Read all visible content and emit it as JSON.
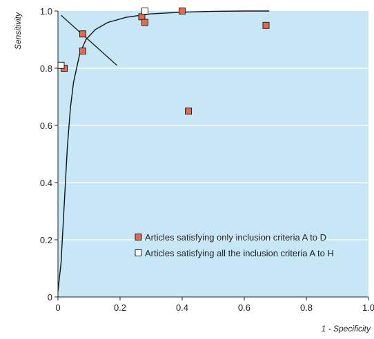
{
  "chart_data": {
    "type": "scatter",
    "title": "",
    "xlabel": "1 - Specificity",
    "ylabel": "Sensitivity",
    "xlim": [
      0,
      1
    ],
    "ylim": [
      0,
      1
    ],
    "grid": true,
    "legend_position": "bottom-right",
    "x_ticks": [
      0,
      0.2,
      0.4,
      0.6,
      0.8,
      1.0
    ],
    "y_ticks": [
      0,
      0.2,
      0.4,
      0.6,
      0.8,
      1.0
    ],
    "x_tick_labels": [
      "0",
      "0.2",
      "0.4",
      "0.6",
      "0.8",
      "1.0"
    ],
    "y_tick_labels": [
      "0",
      "0.2",
      "0.4",
      "0.6",
      "0.8",
      "1.0"
    ],
    "series": [
      {
        "name": "Articles satisfying only inclusion criteria A to D",
        "marker": "filled-square",
        "color": "#E8694A",
        "points": [
          {
            "x": 0.02,
            "y": 0.8
          },
          {
            "x": 0.08,
            "y": 0.92
          },
          {
            "x": 0.08,
            "y": 0.86
          },
          {
            "x": 0.27,
            "y": 0.98
          },
          {
            "x": 0.28,
            "y": 0.96
          },
          {
            "x": 0.4,
            "y": 1.0
          },
          {
            "x": 0.42,
            "y": 0.65
          },
          {
            "x": 0.67,
            "y": 0.95
          }
        ]
      },
      {
        "name": "Articles satisfying all the inclusion criteria A to H",
        "marker": "open-square",
        "color": "#FFFFFF",
        "points": [
          {
            "x": 0.01,
            "y": 0.81
          },
          {
            "x": 0.28,
            "y": 1.0
          }
        ]
      }
    ],
    "curve": {
      "points": [
        {
          "x": 0.0,
          "y": 0.02
        },
        {
          "x": 0.01,
          "y": 0.12
        },
        {
          "x": 0.02,
          "y": 0.32
        },
        {
          "x": 0.03,
          "y": 0.52
        },
        {
          "x": 0.04,
          "y": 0.66
        },
        {
          "x": 0.05,
          "y": 0.75
        },
        {
          "x": 0.07,
          "y": 0.85
        },
        {
          "x": 0.09,
          "y": 0.9
        },
        {
          "x": 0.12,
          "y": 0.935
        },
        {
          "x": 0.16,
          "y": 0.96
        },
        {
          "x": 0.22,
          "y": 0.978
        },
        {
          "x": 0.3,
          "y": 0.99
        },
        {
          "x": 0.4,
          "y": 0.996
        },
        {
          "x": 0.5,
          "y": 0.999
        },
        {
          "x": 0.6,
          "y": 1.0
        },
        {
          "x": 0.68,
          "y": 1.0
        }
      ],
      "color": "#111111"
    },
    "diagonal_line": {
      "points": [
        {
          "x": 0.01,
          "y": 0.985
        },
        {
          "x": 0.19,
          "y": 0.81
        }
      ],
      "color": "#222222"
    },
    "plot_background": "#C7E7F7",
    "grid_color": "#FFFFFF"
  }
}
